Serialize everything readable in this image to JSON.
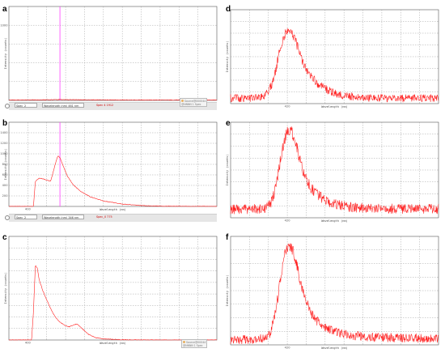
{
  "chart_data": [
    {
      "panel": "a",
      "type": "line",
      "xlabel": "Wavelength (nm)",
      "ylabel": "Intensity (counts)",
      "xlim": [
        360,
        580
      ],
      "ylim": [
        0,
        1000
      ],
      "x_ticks": [
        "",
        "400",
        "",
        "",
        "",
        "",
        "",
        "",
        "",
        "",
        ""
      ],
      "y_ticks": [
        "",
        "",
        "",
        "",
        "1000"
      ],
      "grid": true,
      "cursor_x": 414,
      "series": [
        {
          "x": [
            360,
            380,
            400,
            410,
            414,
            420,
            440,
            470,
            500,
            540,
            580
          ],
          "values": [
            4,
            5,
            6,
            8,
            10,
            8,
            6,
            5,
            4,
            4,
            4
          ]
        }
      ],
      "controls": {
        "dropdown": "Spec_2",
        "wavelength": "Wavelength (nm) 461 nm",
        "readout": "Spec 4  1912",
        "legend": [
          "Source@000044",
          "@NNNN 1 Spec"
        ]
      }
    },
    {
      "panel": "b",
      "type": "line",
      "xlabel": "Wavelength (nm)",
      "ylabel": "Intensity (counts)",
      "xlim": [
        360,
        580
      ],
      "ylim": [
        0,
        1400
      ],
      "x_ticks": [
        "",
        "400",
        "",
        "",
        "",
        "",
        "",
        "",
        "",
        "",
        ""
      ],
      "y_ticks": [
        "",
        "200",
        "400",
        "600",
        "800",
        "1000",
        "1200",
        "1400"
      ],
      "grid": true,
      "cursor_x": 414,
      "series": [
        {
          "x": [
            360,
            380,
            386,
            388,
            392,
            396,
            400,
            404,
            406,
            408,
            410,
            412,
            414,
            418,
            422,
            428,
            436,
            446,
            460,
            480,
            500,
            520,
            550,
            580
          ],
          "values": [
            0,
            0,
            0,
            420,
            470,
            460,
            440,
            420,
            520,
            640,
            760,
            840,
            810,
            650,
            500,
            360,
            250,
            160,
            90,
            40,
            15,
            5,
            2,
            0
          ]
        }
      ],
      "controls": {
        "dropdown": "Spec_2",
        "wavelength": "Wavelength (nm) 346 nm",
        "readout": "Spec_0  775"
      }
    },
    {
      "panel": "c",
      "type": "line",
      "xlabel": "Wavelength (nm)",
      "ylabel": "Intensity (counts)",
      "xlim": [
        360,
        580
      ],
      "ylim": [
        0,
        360
      ],
      "x_ticks": [
        "",
        "400",
        "",
        "",
        "",
        "",
        "",
        "",
        "",
        "",
        ""
      ],
      "y_ticks": [
        "",
        "",
        "",
        "",
        "",
        "",
        "",
        "",
        ""
      ],
      "grid": true,
      "series": [
        {
          "x": [
            360,
            380,
            384,
            386,
            388,
            390,
            392,
            396,
            400,
            404,
            408,
            412,
            416,
            420,
            424,
            428,
            432,
            436,
            440,
            444,
            452,
            460,
            480,
            520,
            580
          ],
          "values": [
            0,
            0,
            0,
            100,
            260,
            250,
            210,
            170,
            140,
            110,
            85,
            68,
            58,
            50,
            46,
            52,
            56,
            44,
            32,
            20,
            8,
            4,
            1,
            0,
            0
          ]
        }
      ],
      "controls": {
        "legend": [
          "Source@00044",
          "@NNNN 1 Spec"
        ]
      }
    },
    {
      "panel": "d",
      "type": "line",
      "xlabel": "Wavelength (nm)",
      "ylabel": "Intensity (counts)",
      "xlim": [
        360,
        580
      ],
      "ylim": [
        0,
        1400
      ],
      "x_ticks": [
        "",
        "",
        "",
        "420",
        "",
        "",
        "",
        "",
        "",
        "",
        ""
      ],
      "y_ticks": [
        "",
        "",
        "",
        "",
        "",
        "",
        "",
        ""
      ],
      "grid": true,
      "series": [
        {
          "x": [
            360,
            380,
            392,
            398,
            404,
            408,
            412,
            416,
            420,
            424,
            428,
            432,
            436,
            440,
            446,
            452,
            460,
            470,
            480,
            500,
            520,
            560,
            580
          ],
          "values": [
            80,
            80,
            90,
            150,
            300,
            520,
            800,
            1000,
            1080,
            1050,
            960,
            800,
            640,
            520,
            400,
            300,
            220,
            160,
            120,
            90,
            80,
            80,
            80
          ]
        }
      ]
    },
    {
      "panel": "e",
      "type": "line",
      "xlabel": "Wavelength (nm)",
      "ylabel": "Intensity (counts)",
      "xlim": [
        360,
        580
      ],
      "ylim": [
        0,
        1400
      ],
      "x_ticks": [
        "",
        "",
        "",
        "420",
        "",
        "",
        "",
        "",
        "",
        "",
        ""
      ],
      "y_ticks": [
        "",
        "",
        "",
        "",
        "",
        "",
        "",
        ""
      ],
      "grid": true,
      "series": [
        {
          "x": [
            360,
            380,
            396,
            402,
            406,
            410,
            414,
            418,
            422,
            426,
            430,
            434,
            438,
            444,
            450,
            458,
            466,
            476,
            490,
            510,
            540,
            580
          ],
          "values": [
            120,
            130,
            140,
            200,
            350,
            620,
            950,
            1200,
            1300,
            1220,
            1050,
            800,
            620,
            460,
            360,
            280,
            220,
            180,
            150,
            140,
            130,
            130
          ]
        }
      ]
    },
    {
      "panel": "f",
      "type": "line",
      "xlabel": "Wavelength (nm)",
      "ylabel": "Intensity (counts)",
      "xlim": [
        360,
        580
      ],
      "ylim": [
        0,
        1400
      ],
      "x_ticks": [
        "",
        "",
        "",
        "420",
        "",
        "",
        "",
        "",
        "",
        "",
        ""
      ],
      "y_ticks": [
        "",
        "",
        "",
        "",
        "",
        "",
        "",
        ""
      ],
      "grid": true,
      "series": [
        {
          "x": [
            360,
            380,
            396,
            402,
            406,
            410,
            414,
            418,
            422,
            426,
            430,
            434,
            438,
            444,
            450,
            458,
            466,
            476,
            490,
            510,
            540,
            580
          ],
          "values": [
            60,
            70,
            80,
            150,
            330,
            620,
            960,
            1200,
            1300,
            1220,
            1040,
            800,
            600,
            440,
            330,
            250,
            190,
            150,
            120,
            100,
            90,
            80
          ]
        }
      ]
    }
  ]
}
